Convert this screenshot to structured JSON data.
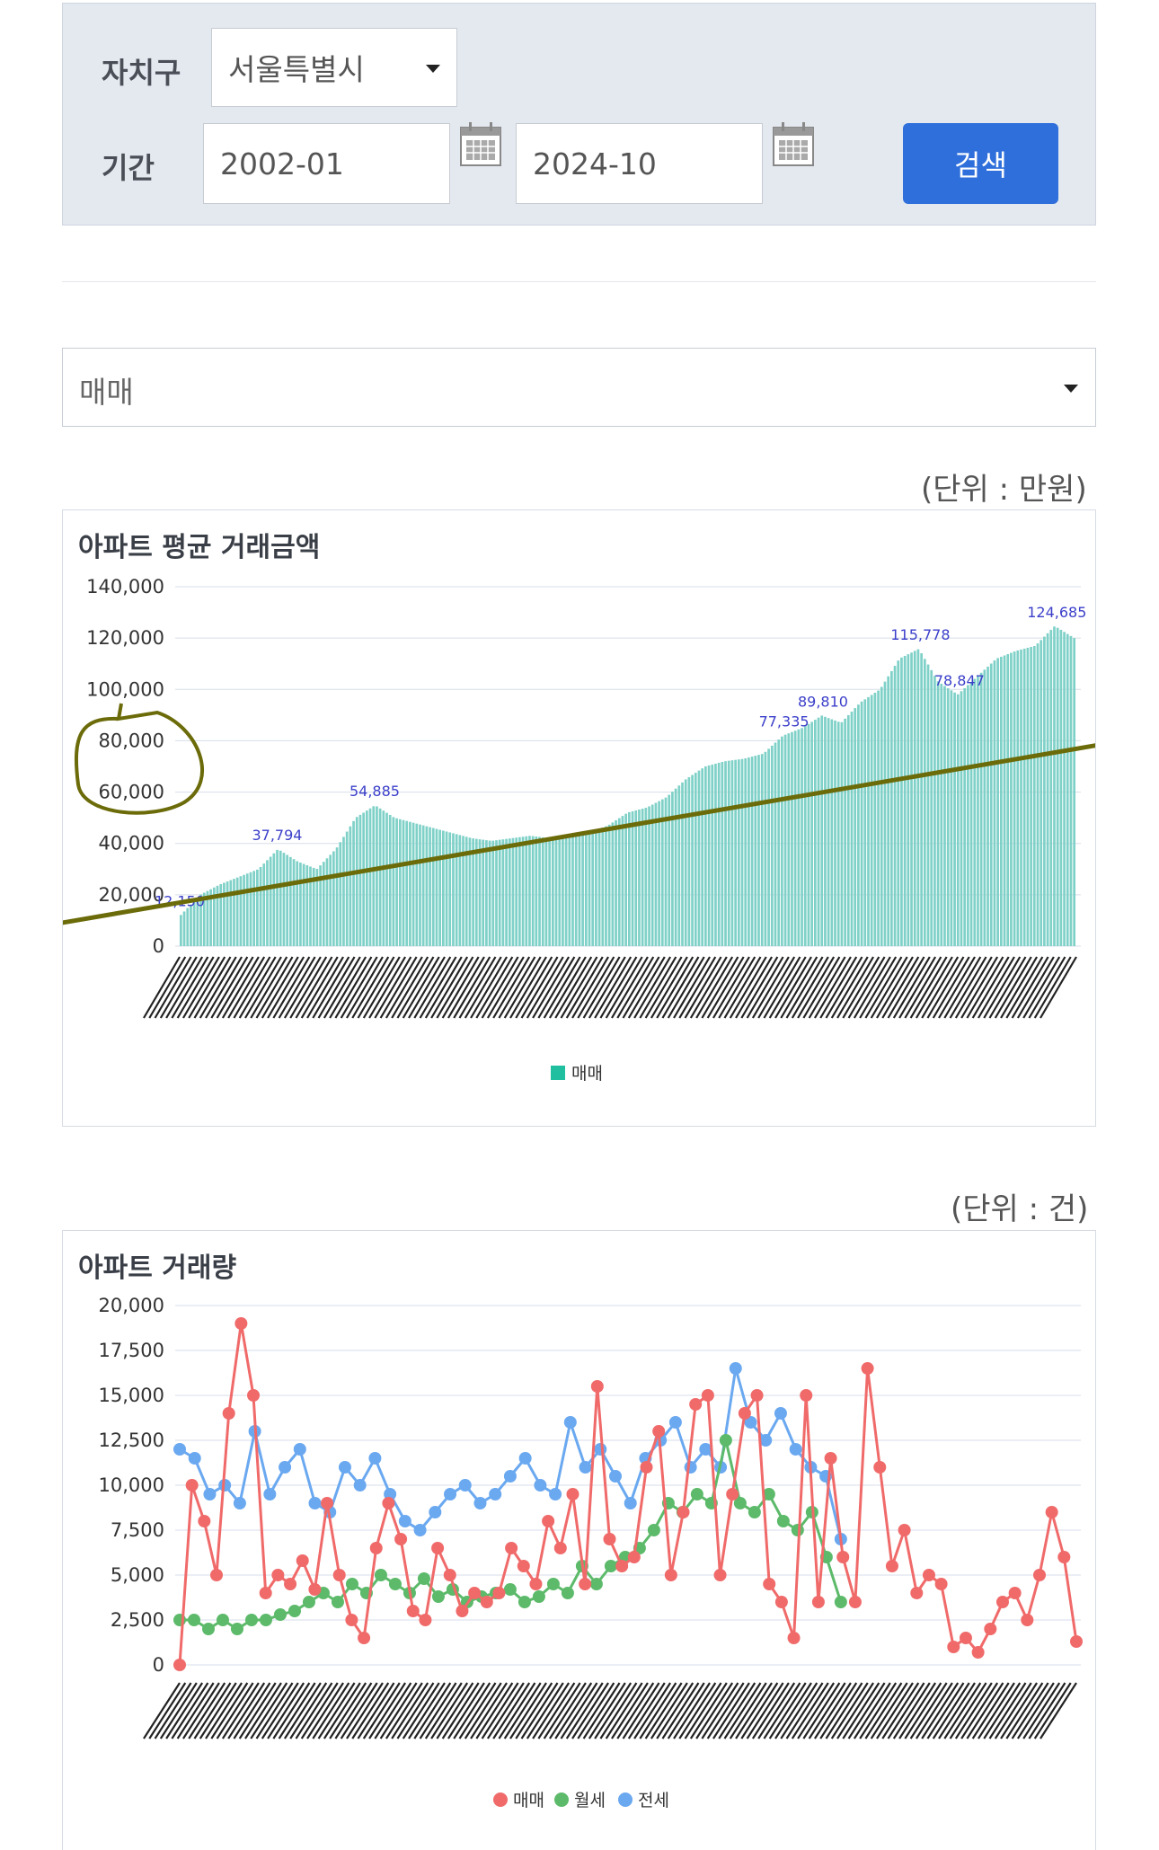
{
  "search": {
    "district_label": "자치구",
    "district_value": "서울특별시",
    "period_label": "기간",
    "start_value": "2002-01",
    "end_value": "2024-10",
    "search_button": "검색"
  },
  "type_select": {
    "value": "매매"
  },
  "price_chart": {
    "unit": "(단위 : 만원)",
    "title": "아파트 평균 거래금액",
    "y_ticks": [
      "140,000",
      "120,000",
      "100,000",
      "80,000",
      "60,000",
      "40,000",
      "20,000",
      "0"
    ],
    "legend": "매매",
    "data_labels": [
      "12,150",
      "37,794",
      "54,885",
      "115,778",
      "124,685",
      "89,810",
      "77,335",
      "78,847"
    ]
  },
  "volume_chart": {
    "unit": "(단위 : 건)",
    "title": "아파트 거래량",
    "y_ticks": [
      "20,000",
      "17,500",
      "15,000",
      "12,500",
      "10,000",
      "7,500",
      "5,000",
      "2,500",
      "0"
    ],
    "legend": [
      "매매",
      "월세",
      "전세"
    ]
  },
  "colors": {
    "accent": "#2f6fdb",
    "bar": "#7fd1c8",
    "bar_legend": "#1fbfa0",
    "label": "#3b3fc9",
    "sale": "#f06a6a",
    "monthly": "#5cba6a",
    "jeonse": "#6aa8f0",
    "annotation": "#6b6b0a"
  },
  "chart_data": [
    {
      "type": "bar",
      "title": "아파트 평균 거래금액",
      "ylim": [
        0,
        140000
      ],
      "series": [
        {
          "name": "매매",
          "values": [
            12150,
            20000,
            24000,
            27000,
            30000,
            37794,
            33000,
            30000,
            38000,
            50000,
            54885,
            50000,
            48000,
            46000,
            44000,
            42000,
            41000,
            42000,
            43000,
            42000,
            43000,
            44000,
            47000,
            52000,
            54000,
            58000,
            65000,
            70000,
            72000,
            73000,
            75000,
            82000,
            85000,
            89810,
            87000,
            95000,
            100000,
            112000,
            115778,
            103000,
            98000,
            105000,
            112000,
            115000,
            117000,
            124685,
            120000
          ]
        }
      ],
      "grid": true,
      "legend_position": "bottom"
    },
    {
      "type": "line",
      "title": "아파트 거래량",
      "ylim": [
        0,
        20000
      ],
      "series": [
        {
          "name": "매매",
          "values": [
            0,
            10000,
            8000,
            5000,
            14000,
            19000,
            15000,
            4000,
            5000,
            4500,
            5800,
            4200,
            9000,
            5000,
            2500,
            1500,
            6500,
            9000,
            7000,
            3000,
            2500,
            6500,
            5000,
            3000,
            4000,
            3500,
            4000,
            6500,
            5500,
            4500,
            8000,
            6500,
            9500,
            4500,
            15500,
            7000,
            5500,
            6000,
            11000,
            13000,
            5000,
            8500,
            14500,
            15000,
            5000,
            9500,
            14000,
            15000,
            4500,
            3500,
            1500,
            15000,
            3500,
            11500,
            6000,
            3500,
            16500,
            11000,
            5500,
            7500,
            4000,
            5000,
            4500,
            1000,
            1500,
            700,
            2000,
            3500,
            4000,
            2500,
            5000,
            8500,
            6000,
            1300
          ]
        },
        {
          "name": "월세",
          "values": [
            2500,
            2500,
            2000,
            2500,
            2000,
            2500,
            2500,
            2800,
            3000,
            3500,
            4000,
            3500,
            4500,
            4000,
            5000,
            4500,
            4000,
            4800,
            3800,
            4200,
            3500,
            3800,
            4000,
            4200,
            3500,
            3800,
            4500,
            4000,
            5500,
            4500,
            5500,
            6000,
            6500,
            7500,
            9000,
            8500,
            9500,
            9000,
            12500,
            9000,
            8500,
            9500,
            8000,
            7500,
            8500,
            6000,
            3500
          ]
        },
        {
          "name": "전세",
          "values": [
            12000,
            11500,
            9500,
            10000,
            9000,
            13000,
            9500,
            11000,
            12000,
            9000,
            8500,
            11000,
            10000,
            11500,
            9500,
            8000,
            7500,
            8500,
            9500,
            10000,
            9000,
            9500,
            10500,
            11500,
            10000,
            9500,
            13500,
            11000,
            12000,
            10500,
            9000,
            11500,
            12500,
            13500,
            11000,
            12000,
            11000,
            16500,
            13500,
            12500,
            14000,
            12000,
            11000,
            10500,
            7000
          ]
        }
      ],
      "grid": true,
      "legend_position": "bottom"
    }
  ]
}
